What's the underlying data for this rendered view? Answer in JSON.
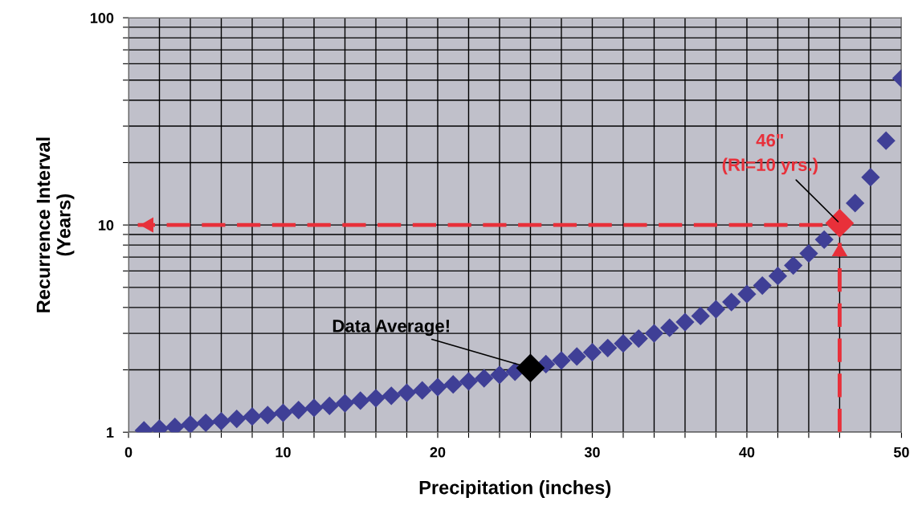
{
  "chart_data": {
    "type": "scatter",
    "xlabel": "Precipitation (inches)",
    "ylabel": "Recurrence Interval\n(Years)",
    "log": "y",
    "grid": true,
    "marker": "diamond",
    "xlim": [
      0,
      50
    ],
    "ylim": [
      1,
      100
    ],
    "xticks": [
      0,
      {
        "value": 2,
        "label": null
      },
      {
        "value": 4,
        "label": null
      },
      {
        "value": 6,
        "label": null
      },
      {
        "value": 8,
        "label": null
      },
      10,
      {
        "value": 12,
        "label": null
      },
      {
        "value": 14,
        "label": null
      },
      {
        "value": 16,
        "label": null
      },
      {
        "value": 18,
        "label": null
      },
      20,
      {
        "value": 22,
        "label": null
      },
      {
        "value": 24,
        "label": null
      },
      {
        "value": 26,
        "label": null
      },
      {
        "value": 28,
        "label": null
      },
      30,
      {
        "value": 32,
        "label": null
      },
      {
        "value": 34,
        "label": null
      },
      {
        "value": 36,
        "label": null
      },
      {
        "value": 38,
        "label": null
      },
      40,
      {
        "value": 42,
        "label": null
      },
      {
        "value": 44,
        "label": null
      },
      {
        "value": 46,
        "label": null
      },
      {
        "value": 48,
        "label": null
      },
      50
    ],
    "yticks": [
      1,
      {
        "value": 2,
        "label": null
      },
      {
        "value": 3,
        "label": null
      },
      {
        "value": 4,
        "label": null
      },
      {
        "value": 5,
        "label": null
      },
      {
        "value": 6,
        "label": null
      },
      {
        "value": 7,
        "label": null
      },
      {
        "value": 8,
        "label": null
      },
      {
        "value": 9,
        "label": null
      },
      10,
      {
        "value": 20,
        "label": null
      },
      {
        "value": 30,
        "label": null
      },
      {
        "value": 40,
        "label": null
      },
      {
        "value": 50,
        "label": null
      },
      {
        "value": 60,
        "label": null
      },
      {
        "value": 70,
        "label": null
      },
      {
        "value": 80,
        "label": null
      },
      {
        "value": 90,
        "label": null
      },
      100
    ],
    "series": [
      {
        "type": "line",
        "color": "#e8303a",
        "line_style": "dashed",
        "marker": "none",
        "x": [
          44.9,
          0.6
        ],
        "values": [
          10,
          10
        ]
      },
      {
        "type": "line",
        "color": "#e8303a",
        "line_style": "dashed",
        "marker": "none",
        "x": [
          46,
          46
        ],
        "values": [
          1,
          8.2
        ]
      },
      {
        "color": "#3f3f96",
        "x": [
          1,
          2,
          3,
          4,
          5,
          6,
          7,
          8,
          9,
          10,
          11,
          12,
          13,
          14,
          15,
          16,
          17,
          18,
          19,
          20,
          21,
          22,
          23,
          24,
          25,
          26,
          27,
          28,
          29,
          30,
          31,
          32,
          33,
          34,
          35,
          36,
          37,
          38,
          39,
          40,
          41,
          42,
          43,
          44,
          45,
          46,
          47,
          48,
          49,
          50
        ],
        "values": [
          1.02,
          1.04,
          1.06,
          1.09,
          1.11,
          1.13,
          1.16,
          1.19,
          1.21,
          1.24,
          1.28,
          1.31,
          1.34,
          1.38,
          1.42,
          1.46,
          1.5,
          1.55,
          1.59,
          1.65,
          1.7,
          1.76,
          1.82,
          1.89,
          1.96,
          null,
          2.13,
          2.22,
          2.32,
          2.43,
          2.55,
          2.68,
          2.83,
          3.0,
          3.19,
          3.4,
          3.64,
          3.92,
          4.25,
          4.64,
          5.1,
          5.67,
          6.38,
          7.29,
          8.5,
          null,
          12.75,
          17,
          25.5,
          51
        ]
      },
      {
        "color": "#000000",
        "x": [
          26
        ],
        "values": [
          2.04
        ]
      },
      {
        "color": "#e8303a",
        "x": [
          46
        ],
        "values": [
          10.2
        ]
      }
    ],
    "annotations": [
      {
        "text": "Data Average!",
        "x": 26,
        "y": 2.04
      },
      {
        "text": "46\"\n(RI=10 yrs.)",
        "x": 46,
        "y": 10.2
      }
    ]
  }
}
